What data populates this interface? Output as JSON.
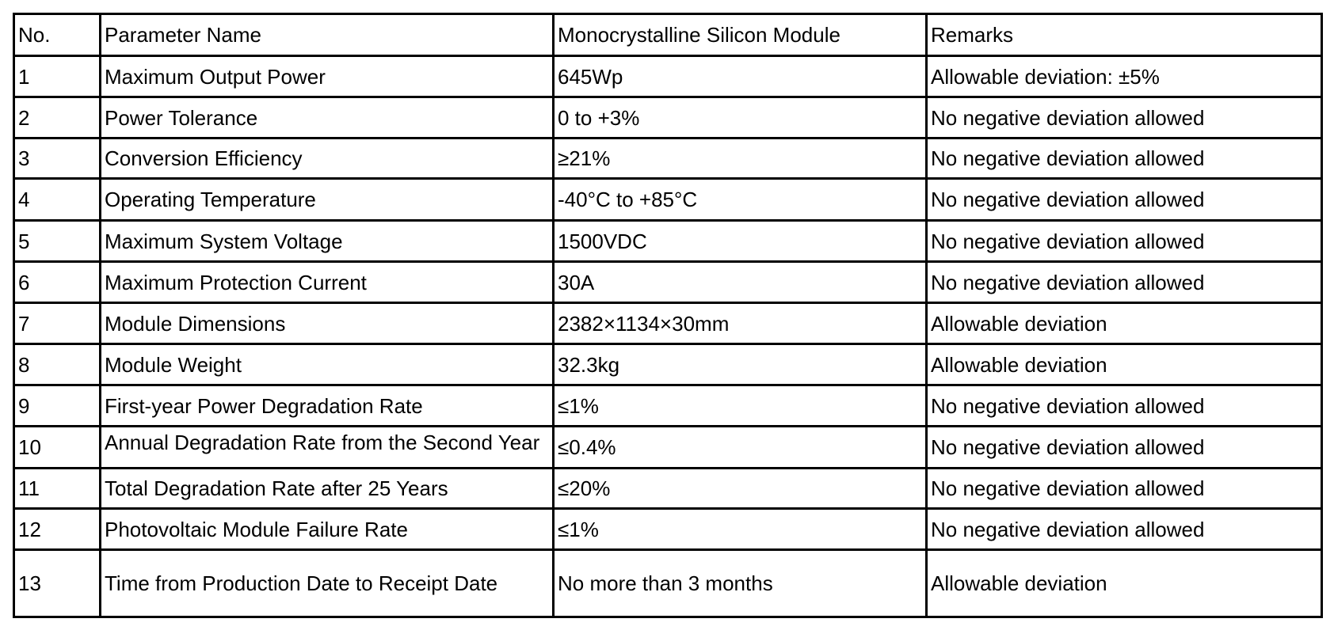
{
  "table": {
    "header": [
      "No.",
      "Parameter Name",
      "Monocrystalline Silicon Module",
      "Remarks"
    ],
    "rows": [
      [
        "1",
        "Maximum Output Power",
        "645Wp",
        "Allowable deviation: ±5%"
      ],
      [
        "2",
        "Power Tolerance",
        "0 to +3%",
        "No negative deviation allowed"
      ],
      [
        "3",
        "Conversion Efficiency",
        "≥21%",
        "No negative deviation allowed"
      ],
      [
        "4",
        "Operating Temperature",
        "-40°C to +85°C",
        "No negative deviation allowed"
      ],
      [
        "5",
        "Maximum System Voltage",
        "1500VDC",
        "No negative deviation allowed"
      ],
      [
        "6",
        "Maximum Protection Current",
        "30A",
        "No negative deviation allowed"
      ],
      [
        "7",
        "Module Dimensions",
        "2382×1134×30mm",
        "Allowable deviation"
      ],
      [
        "8",
        "Module Weight",
        "32.3kg",
        "Allowable deviation"
      ],
      [
        "9",
        "First-year Power Degradation Rate",
        "≤1%",
        "No negative deviation allowed"
      ],
      [
        "10",
        "Annual Degradation Rate from the Second Year",
        "≤0.4%",
        "No negative deviation allowed"
      ],
      [
        "11",
        "Total Degradation Rate after 25 Years",
        "≤20%",
        "No negative deviation allowed"
      ],
      [
        "12",
        "Photovoltaic Module Failure Rate",
        "≤1%",
        "No negative deviation allowed"
      ],
      [
        "13",
        "Time from Production Date to Receipt Date",
        "No more than 3 months",
        "Allowable deviation"
      ]
    ]
  }
}
